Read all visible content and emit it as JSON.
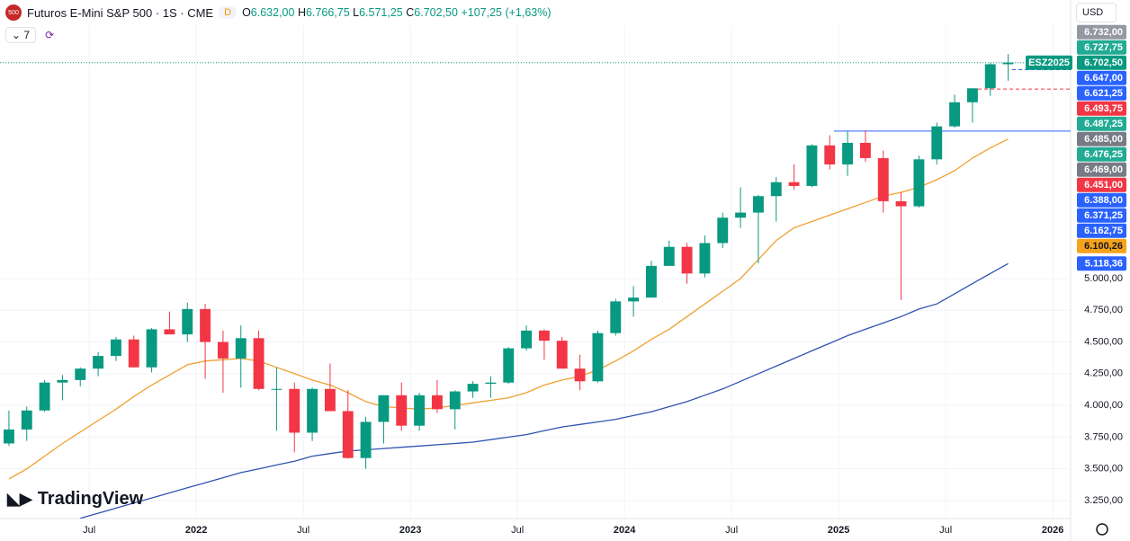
{
  "header": {
    "logo": "500",
    "symbol": "Futuros E-Mini S&P 500 · 1S · CME",
    "badge": "D",
    "ohlc": [
      [
        "O",
        "6.632,00"
      ],
      [
        "H",
        "6.766,75"
      ],
      [
        "L",
        "6.571,25"
      ],
      [
        "C",
        "6.702,50"
      ]
    ],
    "change": "+107,25 (+1,63%)",
    "indicators": "7",
    "currency": "USD"
  },
  "branding": "TradingView",
  "chart_data": {
    "type": "candlestick",
    "grid": true,
    "up_color": "#089981",
    "down_color": "#f23645",
    "x": [
      "2021-02",
      "2021-03",
      "2021-04",
      "2021-05",
      "2021-06",
      "2021-07",
      "2021-08",
      "2021-09",
      "2021-10",
      "2021-11",
      "2021-12",
      "2022-01",
      "2022-02",
      "2022-03",
      "2022-04",
      "2022-05",
      "2022-06",
      "2022-07",
      "2022-08",
      "2022-09",
      "2022-10",
      "2022-11",
      "2022-12",
      "2023-01",
      "2023-02",
      "2023-03",
      "2023-04",
      "2023-05",
      "2023-06",
      "2023-07",
      "2023-08",
      "2023-09",
      "2023-10",
      "2023-11",
      "2023-12",
      "2024-01",
      "2024-02",
      "2024-03",
      "2024-04",
      "2024-05",
      "2024-06",
      "2024-07",
      "2024-08",
      "2024-09",
      "2024-10",
      "2024-11",
      "2024-12",
      "2025-01",
      "2025-02",
      "2025-03",
      "2025-04",
      "2025-05",
      "2025-06",
      "2025-07",
      "2025-08",
      "2025-09",
      "2025-10"
    ],
    "open": [
      3700,
      3810,
      3960,
      4180,
      4200,
      4290,
      4390,
      4520,
      4300,
      4600,
      4560,
      4760,
      4500,
      4370,
      4530,
      4130,
      4130,
      3785,
      4130,
      3955,
      3585,
      3870,
      4080,
      3840,
      4080,
      3970,
      4110,
      4170,
      4180,
      4450,
      4590,
      4510,
      4290,
      4190,
      4570,
      4820,
      4850,
      5100,
      5250,
      5040,
      5280,
      5480,
      5520,
      5650,
      5760,
      5730,
      6050,
      5900,
      6070,
      5950,
      5610,
      5570,
      5940,
      6200,
      6390,
      6500,
      6690
    ],
    "high": [
      3960,
      3990,
      4200,
      4240,
      4300,
      4420,
      4540,
      4550,
      4610,
      4740,
      4810,
      4800,
      4590,
      4630,
      4590,
      4300,
      4180,
      4140,
      4330,
      4120,
      3910,
      4080,
      4180,
      4100,
      4200,
      4120,
      4190,
      4230,
      4460,
      4630,
      4600,
      4540,
      4400,
      4590,
      4840,
      4940,
      5140,
      5300,
      5280,
      5340,
      5520,
      5720,
      5660,
      5800,
      5900,
      6060,
      6130,
      6160,
      6170,
      6010,
      5680,
      5970,
      6230,
      6450,
      6500,
      6700,
      6770
    ],
    "low": [
      3680,
      3720,
      3950,
      4040,
      4150,
      4230,
      4350,
      4300,
      4260,
      4560,
      4500,
      4210,
      4100,
      4140,
      4120,
      3800,
      3630,
      3720,
      3955,
      3580,
      3500,
      3700,
      3800,
      3800,
      3940,
      3810,
      4060,
      4060,
      4170,
      4430,
      4360,
      4290,
      4120,
      4180,
      4550,
      4700,
      4850,
      5100,
      4960,
      5010,
      5240,
      5400,
      5120,
      5450,
      5700,
      5720,
      5860,
      5810,
      5920,
      5520,
      4830,
      5560,
      5900,
      6190,
      6230,
      6440,
      6560
    ],
    "close": [
      3810,
      3960,
      4180,
      4200,
      4290,
      4390,
      4520,
      4300,
      4600,
      4560,
      4760,
      4500,
      4370,
      4530,
      4130,
      4130,
      3785,
      4130,
      3955,
      3585,
      3870,
      4080,
      3840,
      4080,
      3970,
      4110,
      4170,
      4180,
      4450,
      4590,
      4510,
      4290,
      4190,
      4570,
      4820,
      4850,
      5100,
      5250,
      5040,
      5280,
      5480,
      5520,
      5650,
      5760,
      5730,
      6050,
      5900,
      6070,
      5950,
      5610,
      5570,
      5940,
      6200,
      6390,
      6500,
      6690,
      6702.5
    ],
    "series": [
      {
        "color": "#f0a030",
        "values": [
          3420,
          3500,
          3600,
          3700,
          3790,
          3880,
          3970,
          4070,
          4160,
          4240,
          4320,
          4350,
          4360,
          4370,
          4350,
          4300,
          4250,
          4200,
          4160,
          4100,
          4030,
          3990,
          3980,
          3970,
          3980,
          4000,
          4020,
          4040,
          4060,
          4100,
          4160,
          4200,
          4230,
          4280,
          4350,
          4430,
          4520,
          4600,
          4700,
          4800,
          4900,
          5000,
          5150,
          5300,
          5400,
          5450,
          5500,
          5550,
          5600,
          5650,
          5680,
          5720,
          5780,
          5850,
          5950,
          6030,
          6100.26
        ]
      },
      {
        "color": "#2f54b0",
        "values": [
          null,
          null,
          null,
          null,
          3110,
          3150,
          3190,
          3230,
          3270,
          3310,
          3350,
          3390,
          3430,
          3470,
          3500,
          3530,
          3560,
          3600,
          3620,
          3640,
          3650,
          3660,
          3670,
          3680,
          3690,
          3700,
          3710,
          3730,
          3750,
          3770,
          3800,
          3830,
          3850,
          3870,
          3890,
          3920,
          3950,
          3990,
          4030,
          4080,
          4130,
          4190,
          4250,
          4310,
          4370,
          4430,
          4490,
          4550,
          4600,
          4650,
          4700,
          4760,
          4800,
          4880,
          4960,
          5040,
          5118.36
        ]
      }
    ],
    "xlim": [
      "2021-02",
      "2026-02"
    ],
    "xticks": [
      {
        "value": "2021-07",
        "label": "Jul"
      },
      {
        "value": "2022-01",
        "label": "2022"
      },
      {
        "value": "2022-07",
        "label": "Jul"
      },
      {
        "value": "2023-01",
        "label": "2023"
      },
      {
        "value": "2023-07",
        "label": "Jul"
      },
      {
        "value": "2024-01",
        "label": "2024"
      },
      {
        "value": "2024-07",
        "label": "Jul"
      },
      {
        "value": "2025-01",
        "label": "2025"
      },
      {
        "value": "2025-07",
        "label": "Jul"
      },
      {
        "value": "2026-01",
        "label": "2026"
      }
    ],
    "ylim": [
      3108,
      6998
    ],
    "yticks": [
      {
        "value": 3250,
        "label": "3.250,00"
      },
      {
        "value": 3500,
        "label": "3.500,00"
      },
      {
        "value": 3750,
        "label": "3.750,00"
      },
      {
        "value": 4000,
        "label": "4.000,00"
      },
      {
        "value": 4250,
        "label": "4.250,00"
      },
      {
        "value": 4500,
        "label": "4.500,00"
      },
      {
        "value": 4750,
        "label": "4.750,00"
      },
      {
        "value": 5000,
        "label": "5.000,00"
      }
    ],
    "contract": "ESZ2025",
    "price_labels": [
      {
        "value": 6732,
        "label": "6.732,00",
        "color": "#9598a1"
      },
      {
        "value": 6727.75,
        "label": "6.727,75",
        "color": "#22ab94"
      },
      {
        "value": 6702.5,
        "label": "6.702,50",
        "color": "#089981"
      },
      {
        "value": 6647,
        "label": "6.647,00",
        "color": "#2962ff"
      },
      {
        "value": 6621.25,
        "label": "6.621,25",
        "color": "#2962ff"
      },
      {
        "value": 6493.75,
        "label": "6.493,75",
        "color": "#f23645"
      },
      {
        "value": 6487.25,
        "label": "6.487,25",
        "color": "#22ab94"
      },
      {
        "value": 6485,
        "label": "6.485,00",
        "color": "#787b86"
      },
      {
        "value": 6476.25,
        "label": "6.476,25",
        "color": "#22ab94"
      },
      {
        "value": 6469,
        "label": "6.469,00",
        "color": "#787b86"
      },
      {
        "value": 6451,
        "label": "6.451,00",
        "color": "#f23645"
      },
      {
        "value": 6388,
        "label": "6.388,00",
        "color": "#2962ff"
      },
      {
        "value": 6371.25,
        "label": "6.371,25",
        "color": "#2962ff"
      },
      {
        "value": 6162.75,
        "label": "6.162,75",
        "color": "#2962ff"
      },
      {
        "value": 6100.26,
        "label": "6.100,26",
        "color": "#f7a21b"
      },
      {
        "value": 5118.36,
        "label": "5.118,36",
        "color": "#2962ff"
      }
    ]
  }
}
